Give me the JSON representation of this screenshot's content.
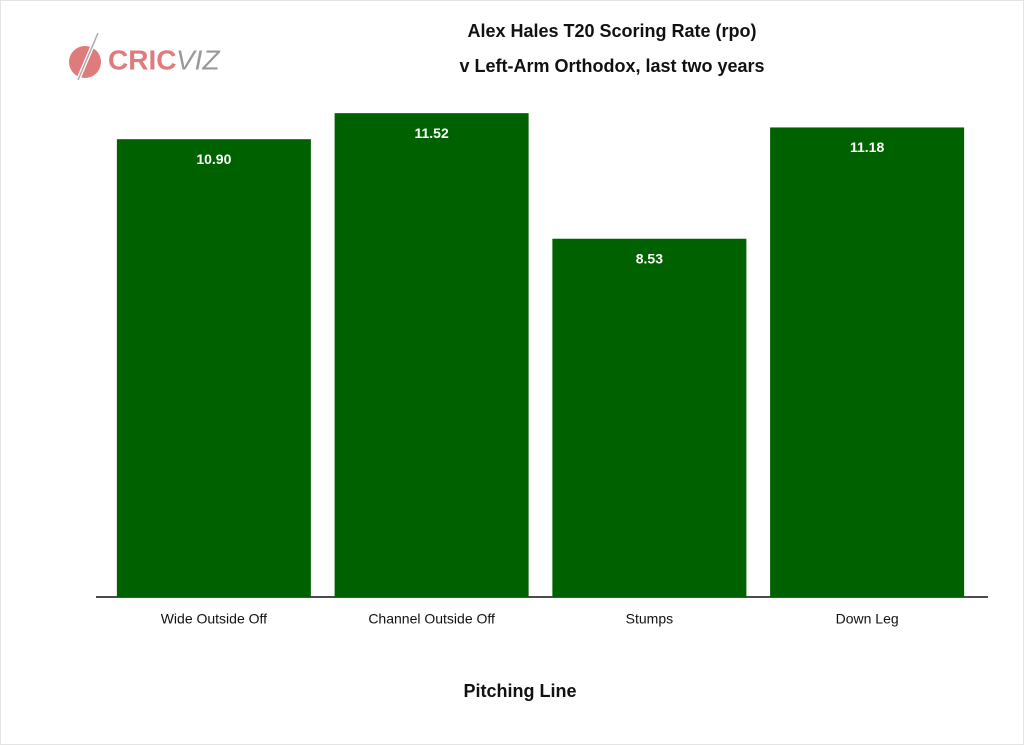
{
  "chart_data": {
    "type": "bar",
    "title": "Alex Hales T20 Scoring Rate (rpo)",
    "subtitle": "v Left-Arm Orthodox, last two years",
    "logo": [
      "CRIC",
      "VIZ"
    ],
    "xlabel": "Pitching Line",
    "categories": [
      "Wide Outside Off",
      "Channel Outside Off",
      "Stumps",
      "Down Leg"
    ],
    "values": [
      10.9,
      11.52,
      8.53,
      11.18
    ],
    "value_labels": [
      "10.90",
      "11.52",
      "8.53",
      "11.18"
    ],
    "color": "#006100",
    "grid": false
  }
}
